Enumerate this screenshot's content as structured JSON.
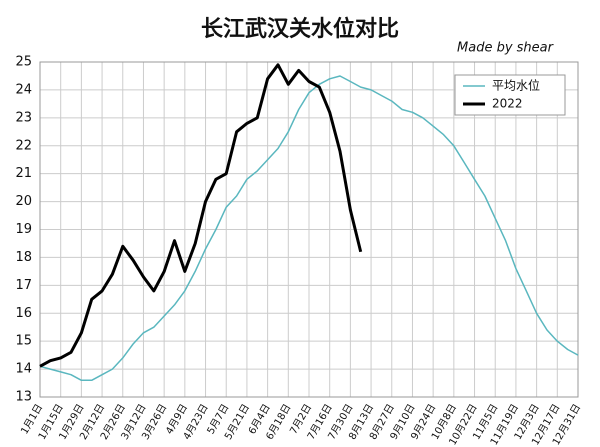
{
  "chart_data": {
    "type": "line",
    "title": "长江武汉关水位对比",
    "annotation": "Made by shear",
    "categories": [
      "1月1日",
      null,
      "1月15日",
      null,
      "1月29日",
      null,
      "2月12日",
      null,
      "2月26日",
      null,
      "3月12日",
      null,
      "3月26日",
      null,
      "4月9日",
      null,
      "4月23日",
      null,
      "5月7日",
      null,
      "5月21日",
      null,
      "6月4日",
      null,
      "6月18日",
      null,
      "7月2日",
      null,
      "7月16日",
      null,
      "7月30日",
      null,
      "8月13日",
      null,
      "8月27日",
      null,
      "9月10日",
      null,
      "9月24日",
      null,
      "10月8日",
      null,
      "10月22日",
      null,
      "11月5日",
      null,
      "11月19日",
      null,
      "12月3日",
      null,
      "12月17日",
      null,
      "12月31日"
    ],
    "series": [
      {
        "name": "平均水位",
        "color": "#5ab7bf",
        "values": [
          14.1,
          14.0,
          13.9,
          13.8,
          13.6,
          13.6,
          13.8,
          14.0,
          14.4,
          14.9,
          15.3,
          15.5,
          15.9,
          16.3,
          16.8,
          17.5,
          18.3,
          19.0,
          19.8,
          20.2,
          20.8,
          21.1,
          21.5,
          21.9,
          22.5,
          23.3,
          23.9,
          24.2,
          24.4,
          24.5,
          24.3,
          24.1,
          24.0,
          23.8,
          23.6,
          23.3,
          23.2,
          23.0,
          22.7,
          22.4,
          22.0,
          21.4,
          20.8,
          20.2,
          19.4,
          18.6,
          17.6,
          16.8,
          16.0,
          15.4,
          15.0,
          14.7,
          14.5
        ]
      },
      {
        "name": "2022",
        "color": "#000000",
        "values": [
          14.1,
          14.3,
          14.4,
          14.6,
          15.3,
          16.5,
          16.8,
          17.4,
          18.4,
          17.9,
          17.3,
          16.8,
          17.5,
          18.6,
          17.5,
          18.5,
          20.0,
          20.8,
          21.0,
          22.5,
          22.8,
          23.0,
          24.4,
          24.9,
          24.2,
          24.7,
          24.3,
          24.1,
          23.2,
          21.8,
          19.7,
          18.2,
          null,
          null,
          null,
          null,
          null,
          null,
          null,
          null,
          null,
          null,
          null,
          null,
          null,
          null,
          null,
          null,
          null,
          null,
          null,
          null,
          null
        ]
      }
    ],
    "ylim": [
      13,
      25
    ],
    "yticks": [
      13,
      14,
      15,
      16,
      17,
      18,
      19,
      20,
      21,
      22,
      23,
      24,
      25
    ],
    "grid": true,
    "legend": "upper right"
  }
}
